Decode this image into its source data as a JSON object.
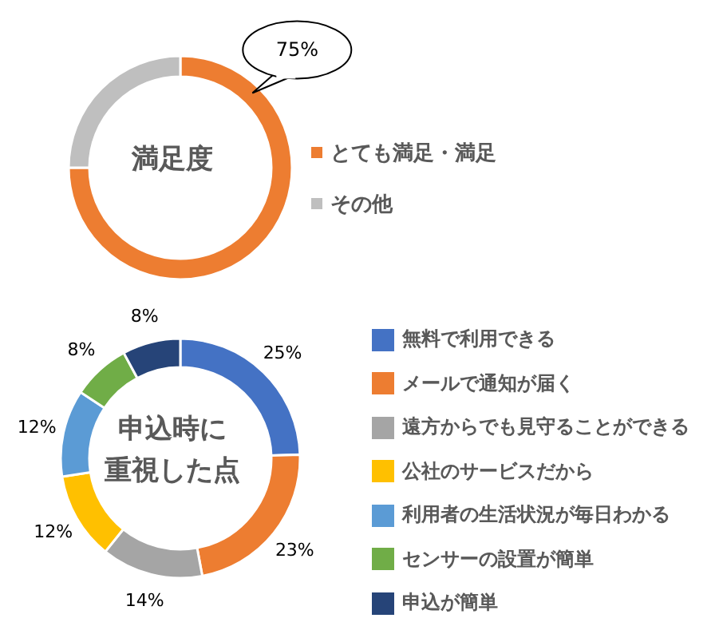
{
  "chart_data": [
    {
      "type": "donut",
      "title": "満足度",
      "categories": [
        "とても満足・満足",
        "その他"
      ],
      "values": [
        75,
        25
      ],
      "colors": [
        "#ed7d31",
        "#bfbfbf"
      ],
      "value_labels": [
        "75%",
        null
      ],
      "legend": "right"
    },
    {
      "type": "donut",
      "title": "申込時に重視した点",
      "categories": [
        "無料で利用できる",
        "メールで通知が届く",
        "遠方からでも見守ることができる",
        "公社のサービスだから",
        "利用者の生活状況が毎日わかる",
        "センサーの設置が簡単",
        "申込が簡単"
      ],
      "values": [
        25,
        23,
        14,
        12,
        12,
        8,
        8
      ],
      "colors": [
        "#4472c4",
        "#ed7d31",
        "#a5a5a5",
        "#ffc000",
        "#5b9bd5",
        "#70ad47",
        "#264478"
      ],
      "value_labels": [
        "25%",
        "23%",
        "14%",
        "12%",
        "12%",
        "8%",
        "8%"
      ],
      "legend": "right"
    }
  ]
}
